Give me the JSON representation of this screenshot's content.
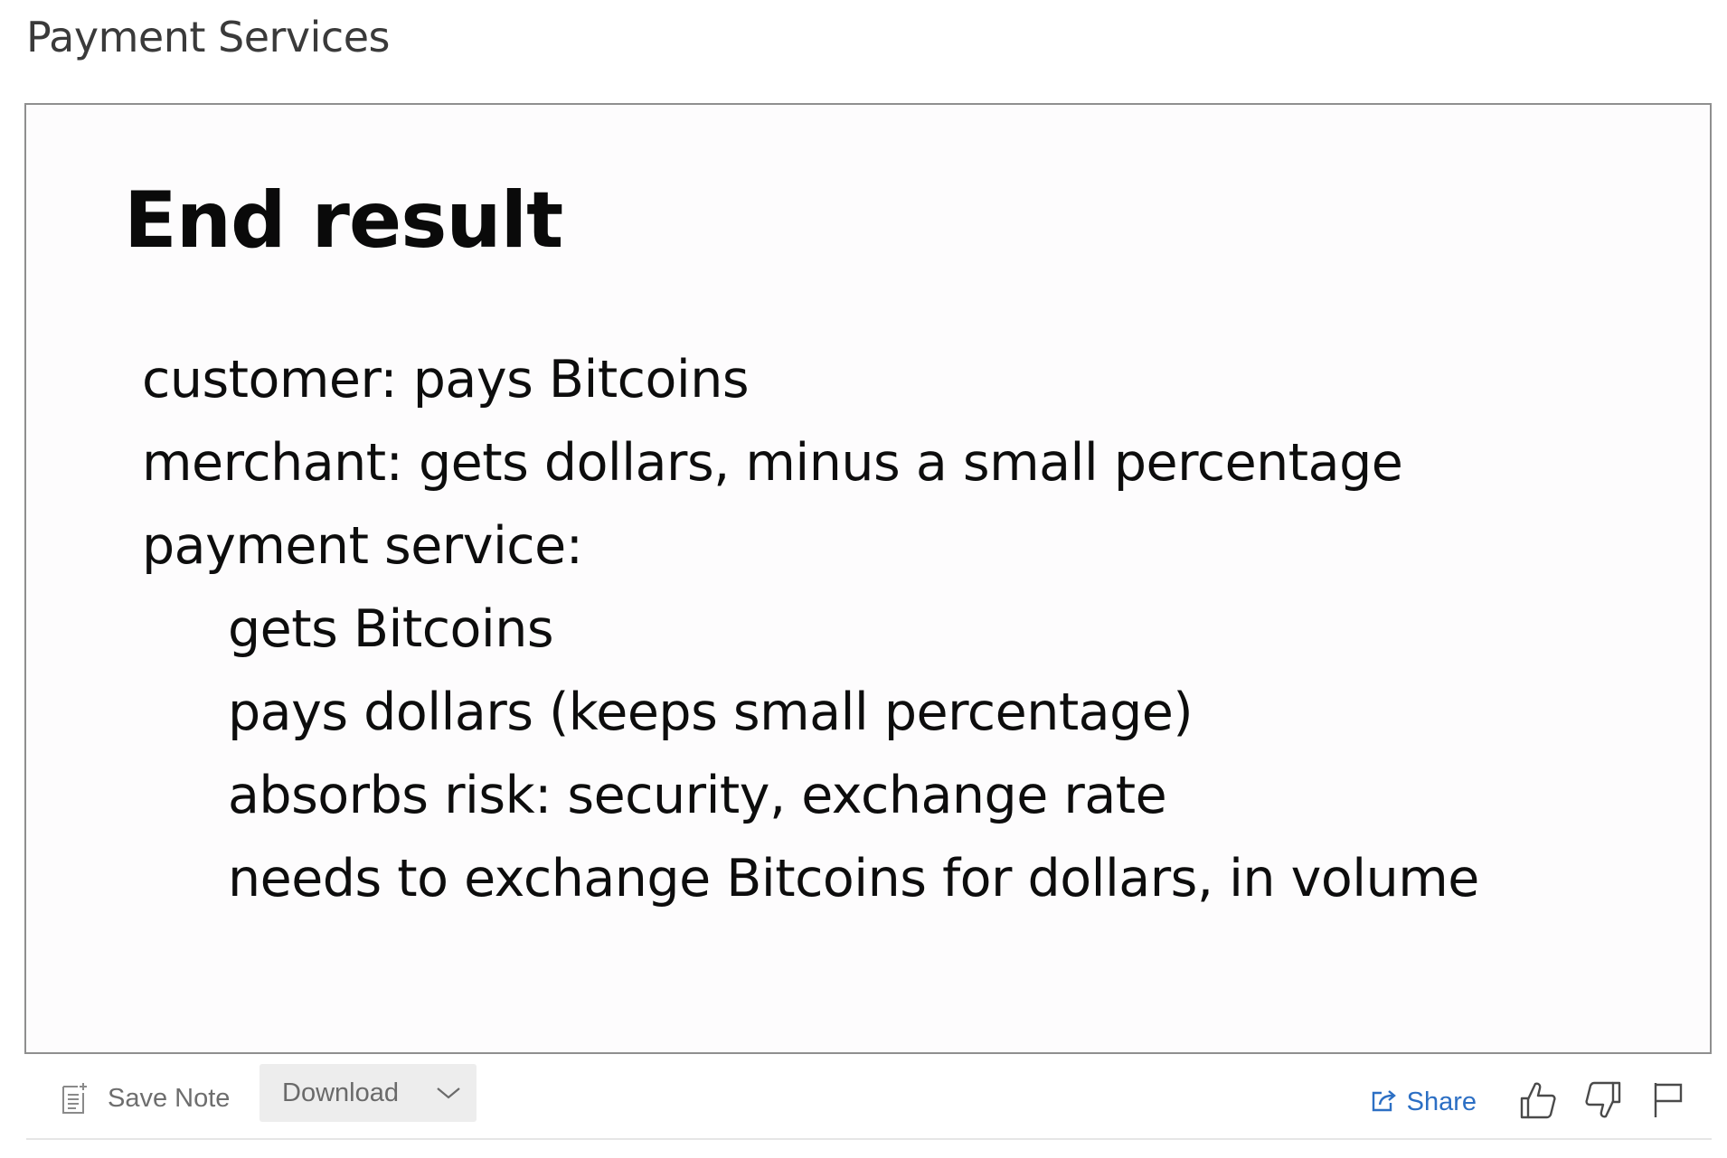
{
  "page": {
    "title": "Payment Services"
  },
  "slide": {
    "heading": "End result",
    "lines": [
      {
        "text": "customer: pays Bitcoins",
        "indent": false
      },
      {
        "text": "merchant: gets dollars, minus a small percentage",
        "indent": false
      },
      {
        "text": "payment service:",
        "indent": false
      },
      {
        "text": "gets Bitcoins",
        "indent": true
      },
      {
        "text": "pays dollars (keeps small percentage)",
        "indent": true
      },
      {
        "text": "absorbs risk: security, exchange rate",
        "indent": true
      },
      {
        "text": "needs to exchange Bitcoins for dollars, in volume",
        "indent": true
      }
    ]
  },
  "toolbar": {
    "save_note_label": "Save Note",
    "download_label": "Download",
    "share_label": "Share",
    "icons": {
      "save_note": "note-icon",
      "download_menu": "chevron-down-icon",
      "share": "share-icon",
      "like": "thumbs-up-icon",
      "dislike": "thumbs-down-icon",
      "flag": "flag-icon"
    }
  },
  "colors": {
    "link": "#2c6fc4",
    "frame_border": "#8f8f8f",
    "button_bg": "#ededed"
  }
}
